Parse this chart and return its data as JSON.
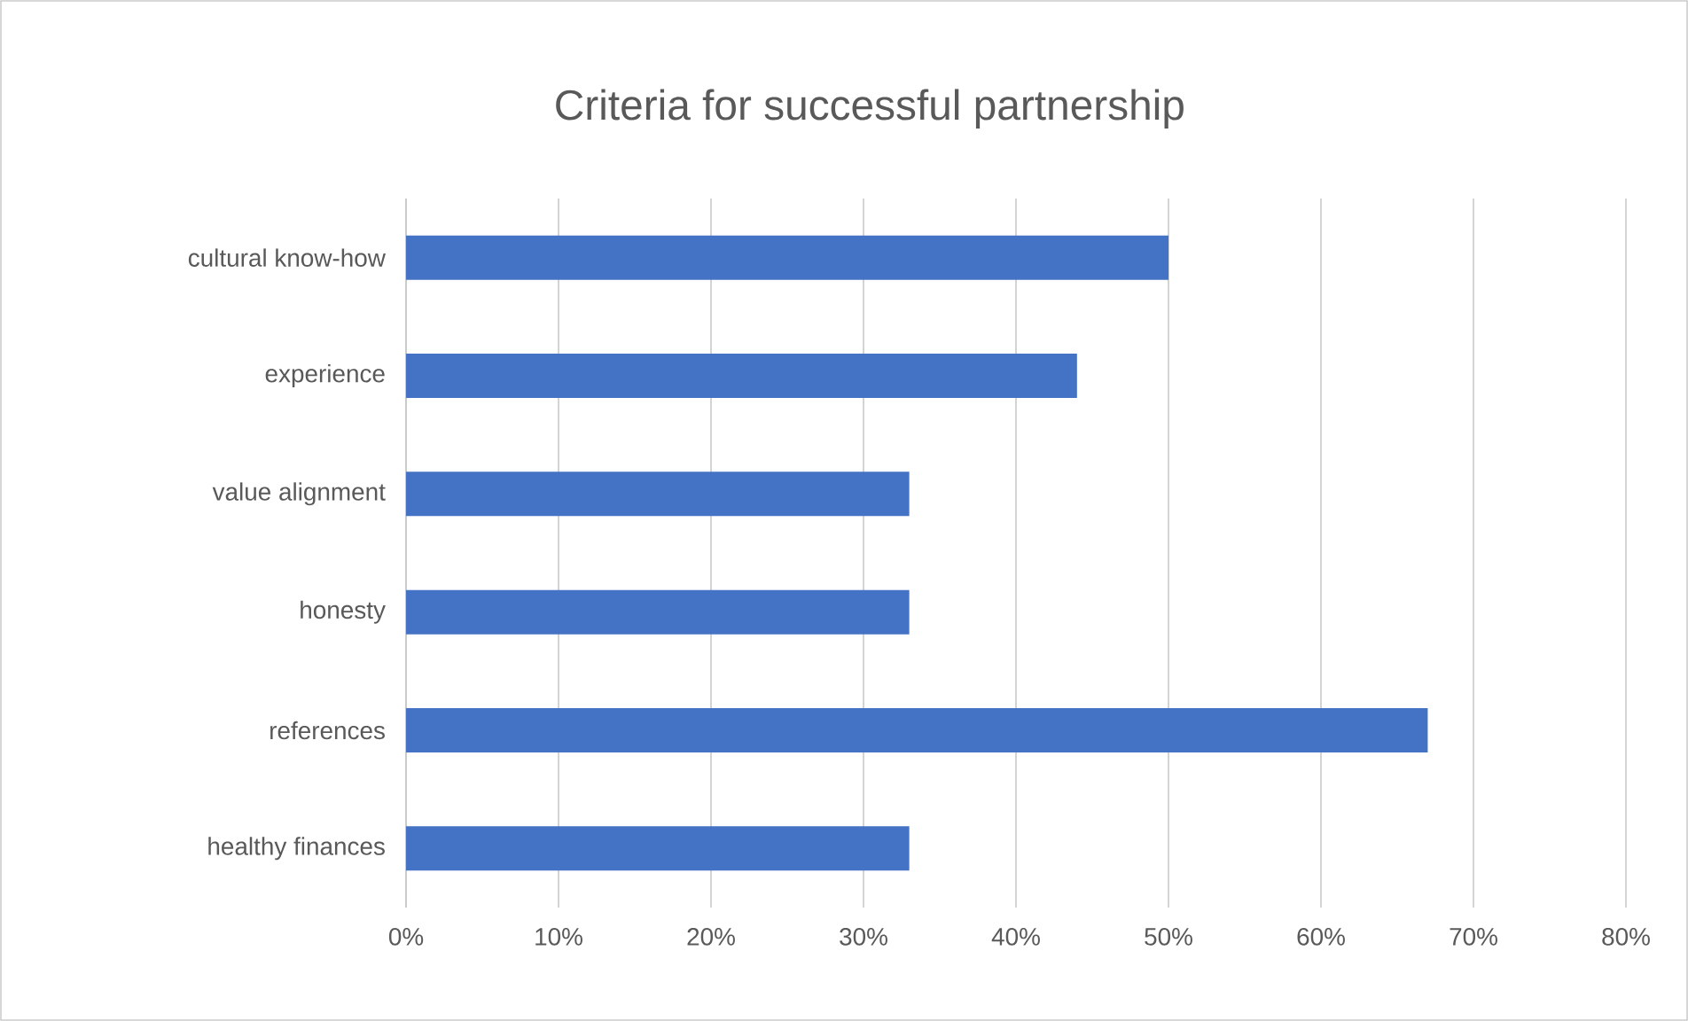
{
  "chart_data": {
    "type": "bar",
    "orientation": "horizontal",
    "title": "Criteria for successful partnership",
    "categories": [
      "cultural know-how",
      "experience",
      "value alignment",
      "honesty",
      "references",
      "healthy finances"
    ],
    "values": [
      50,
      44,
      33,
      33,
      67,
      33
    ],
    "color": "#4472c4",
    "xlim": [
      0,
      80
    ],
    "xticks": [
      {
        "value": 0,
        "label": "0%"
      },
      {
        "value": 10,
        "label": "10%"
      },
      {
        "value": 20,
        "label": "20%"
      },
      {
        "value": 30,
        "label": "30%"
      },
      {
        "value": 40,
        "label": "40%"
      },
      {
        "value": 50,
        "label": "50%"
      },
      {
        "value": 60,
        "label": "60%"
      },
      {
        "value": 70,
        "label": "70%"
      },
      {
        "value": 80,
        "label": "80%"
      }
    ],
    "grid": "x"
  }
}
